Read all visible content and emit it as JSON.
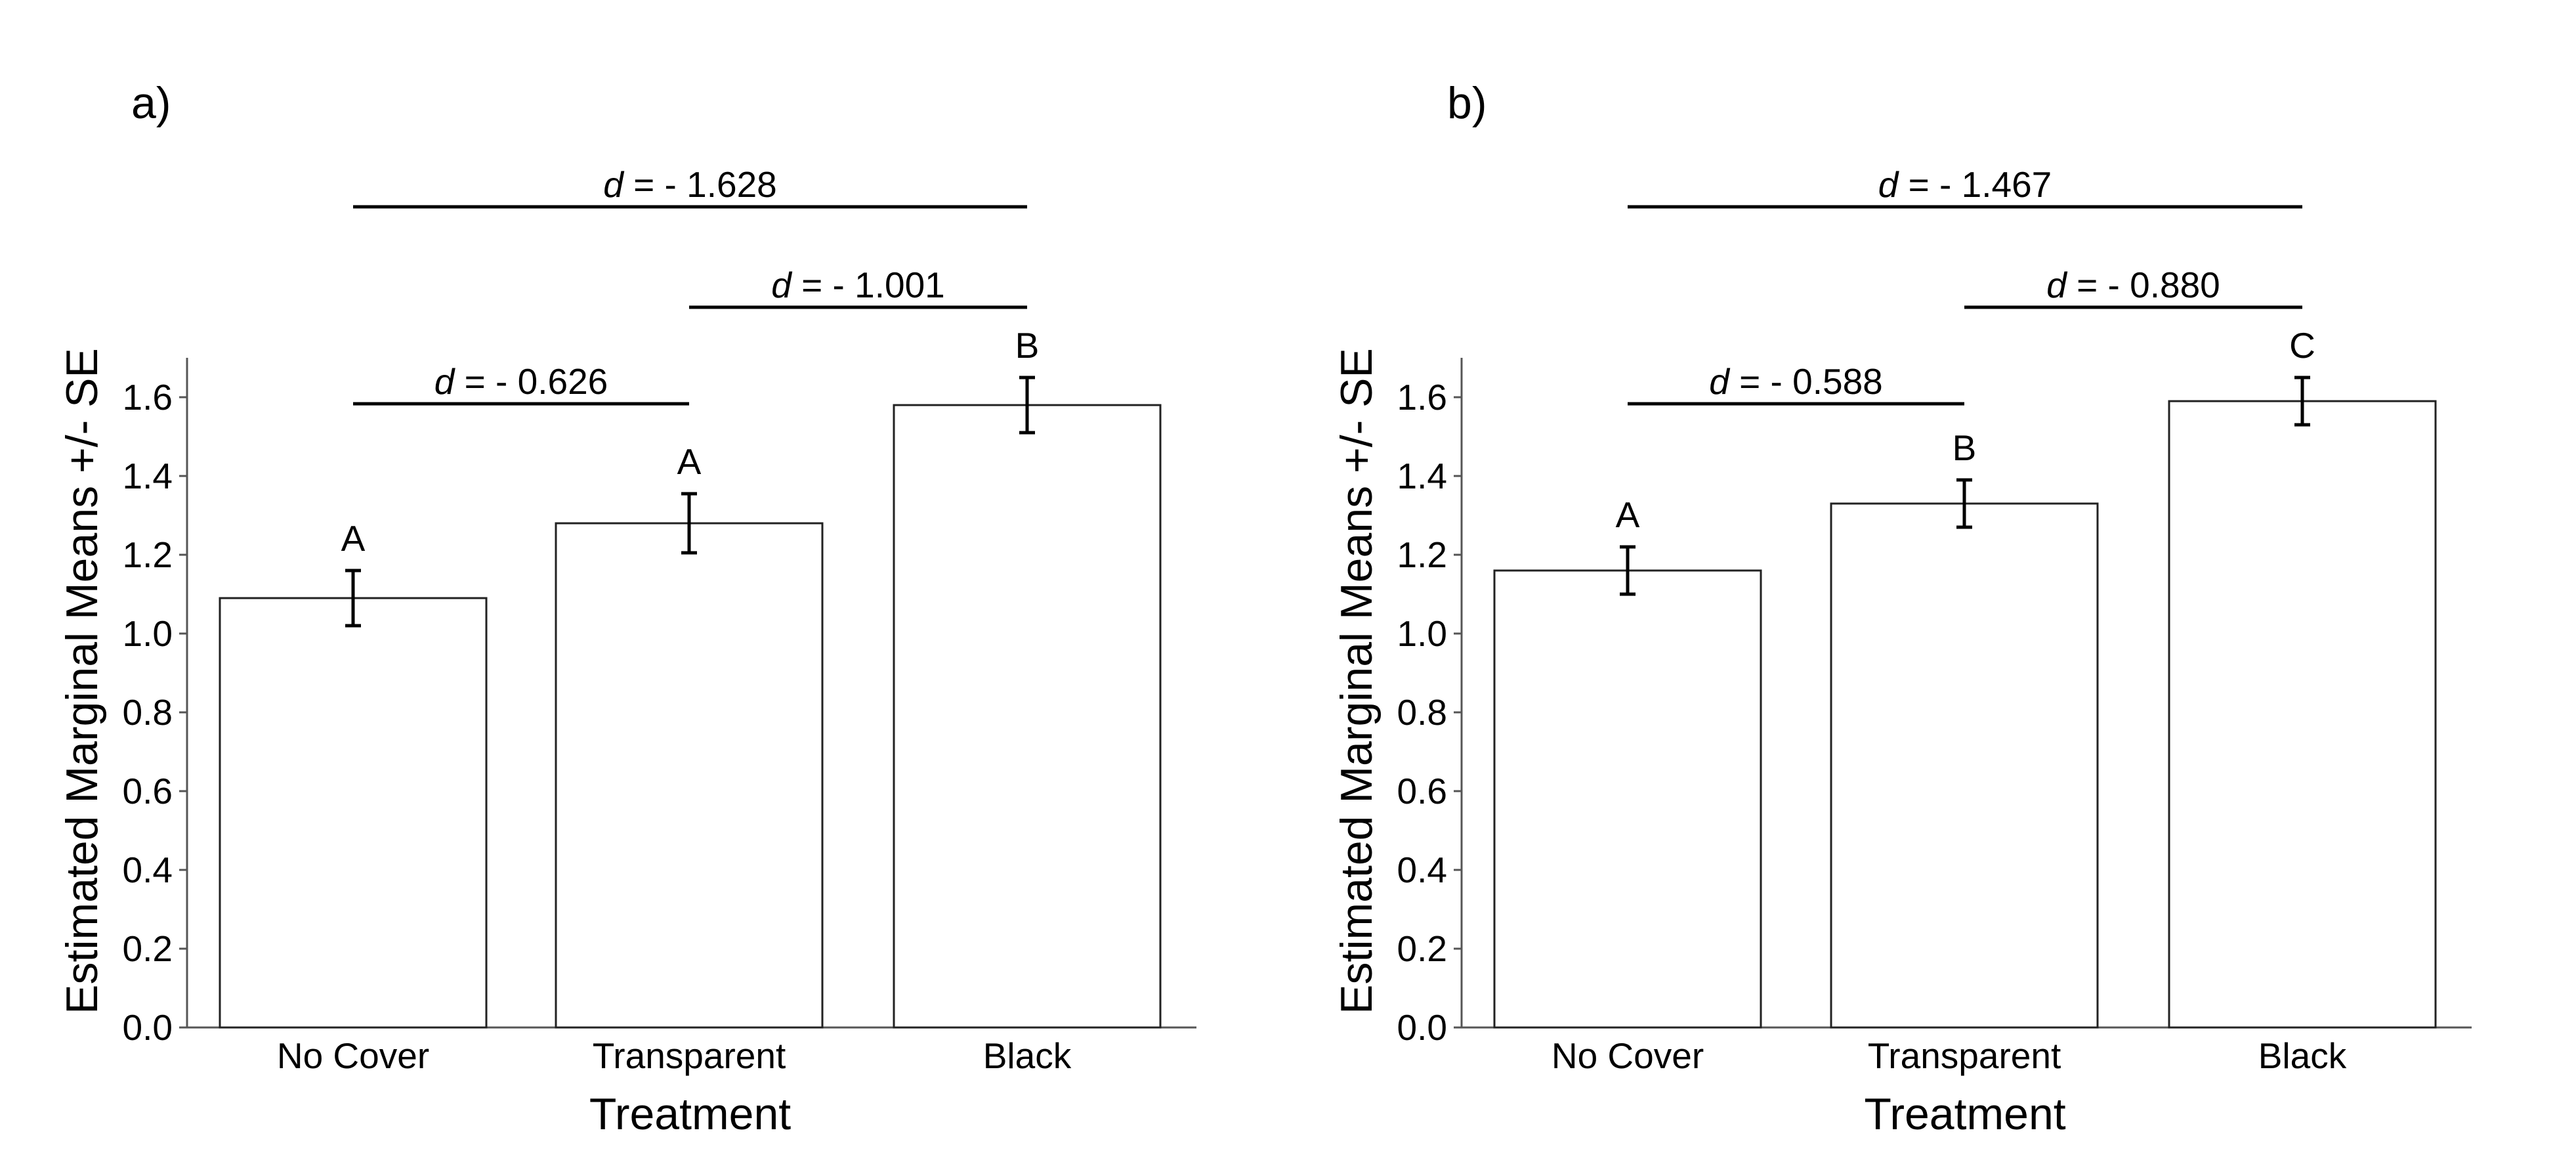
{
  "chart_data": [
    {
      "type": "bar",
      "panel_label": "a)",
      "categories": [
        "No Cover",
        "Transparent",
        "Black"
      ],
      "values": [
        1.09,
        1.28,
        1.58
      ],
      "se": [
        0.07,
        0.075,
        0.07
      ],
      "letters": [
        "A",
        "A",
        "B"
      ],
      "xlabel": "Treatment",
      "ylabel": "Estimated Marginal Means +/- SE",
      "ylim": [
        0,
        1.7
      ],
      "yticks": [
        "0.0",
        "0.2",
        "0.4",
        "0.6",
        "0.8",
        "1.0",
        "1.2",
        "1.4",
        "1.6"
      ],
      "comparisons": [
        {
          "from": 0,
          "to": 1,
          "label": "d = - 0.626"
        },
        {
          "from": 1,
          "to": 2,
          "label": "d = - 1.001"
        },
        {
          "from": 0,
          "to": 2,
          "label": "d = - 1.628"
        }
      ]
    },
    {
      "type": "bar",
      "panel_label": "b)",
      "categories": [
        "No Cover",
        "Transparent",
        "Black"
      ],
      "values": [
        1.16,
        1.33,
        1.59
      ],
      "se": [
        0.06,
        0.06,
        0.06
      ],
      "letters": [
        "A",
        "B",
        "C"
      ],
      "xlabel": "Treatment",
      "ylabel": "Estimated Marginal Means +/- SE",
      "ylim": [
        0,
        1.7
      ],
      "yticks": [
        "0.0",
        "0.2",
        "0.4",
        "0.6",
        "0.8",
        "1.0",
        "1.2",
        "1.4",
        "1.6"
      ],
      "comparisons": [
        {
          "from": 0,
          "to": 1,
          "label": "d = - 0.588"
        },
        {
          "from": 1,
          "to": 2,
          "label": "d = - 0.880"
        },
        {
          "from": 0,
          "to": 2,
          "label": "d = - 1.467"
        }
      ]
    }
  ]
}
